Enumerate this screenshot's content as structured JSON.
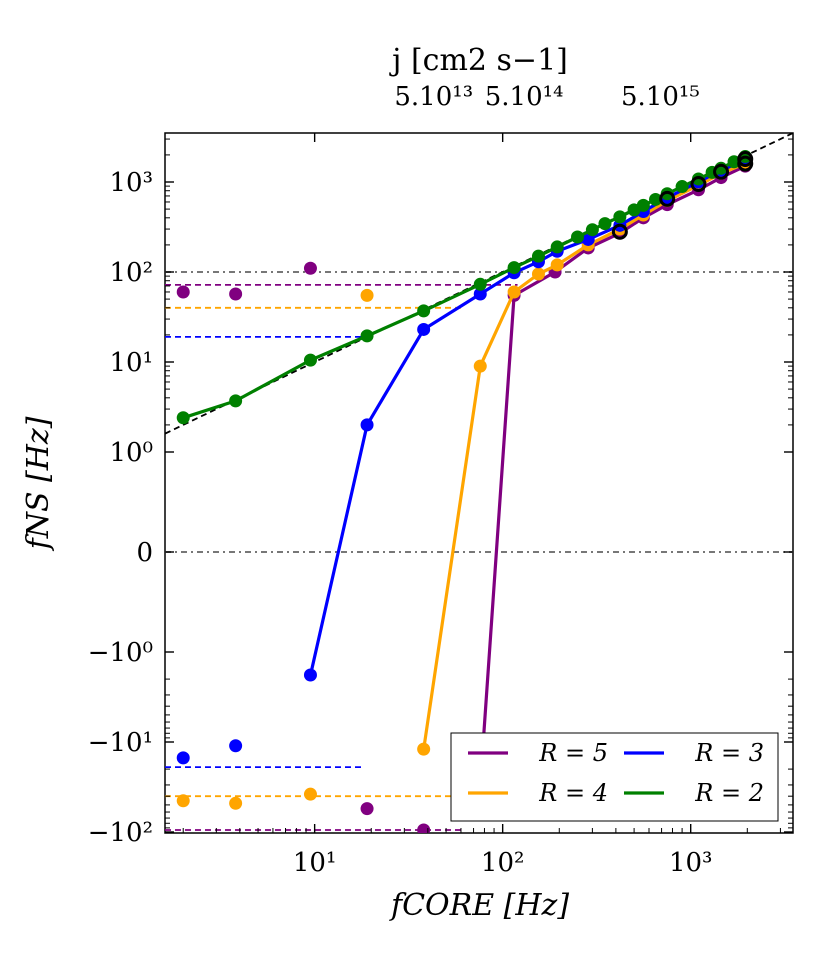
{
  "chart_data": {
    "type": "line",
    "x_scale": "log",
    "y_scale": "symlog",
    "xlim": [
      1.6,
      3500
    ],
    "ylim": [
      -110,
      3500
    ],
    "xlabel": "fCORE [Hz]",
    "ylabel": "fNS [Hz]",
    "top_axis_label": "j [cm2 s−1]",
    "top_ticks": [
      "5.10¹³",
      "5.10¹⁴",
      "5.10¹⁵"
    ],
    "x_ticks": [
      "10¹",
      "10²",
      "10³"
    ],
    "y_ticks": [
      "10³",
      "10²",
      "10¹",
      "10⁰",
      "0",
      "−10⁰",
      "−10¹",
      "−10²"
    ],
    "grid": false,
    "legend_position": "lower-right",
    "reference_lines": [
      {
        "type": "horizontal",
        "y": 100,
        "style": "dashdot"
      },
      {
        "type": "horizontal",
        "y": 0,
        "style": "dashdot"
      },
      {
        "type": "diagonal",
        "equation": "y = x",
        "style": "dashed"
      }
    ],
    "series": [
      {
        "name": "R = 5",
        "color": "#800080",
        "line": [
          [
            76,
            -30
          ],
          [
            115,
            55
          ],
          [
            190,
            100
          ],
          [
            285,
            185
          ],
          [
            420,
            270
          ],
          [
            560,
            400
          ],
          [
            750,
            560
          ],
          [
            1100,
            820
          ],
          [
            1450,
            1120
          ],
          [
            1950,
            1500
          ]
        ],
        "scatter": [
          [
            2,
            60
          ],
          [
            3.8,
            57
          ],
          [
            9.5,
            110
          ],
          [
            19,
            -55
          ],
          [
            38,
            -95
          ]
        ],
        "level_lines": [
          {
            "y": 72,
            "x": [
              1.6,
              120
            ]
          },
          {
            "y": -95,
            "x": [
              1.6,
              60
            ]
          }
        ]
      },
      {
        "name": "R = 4",
        "color": "#FFA500",
        "line": [
          [
            38,
            -12
          ],
          [
            76,
            9
          ],
          [
            115,
            60
          ],
          [
            155,
            95
          ],
          [
            195,
            120
          ],
          [
            285,
            200
          ],
          [
            420,
            300
          ],
          [
            560,
            430
          ],
          [
            750,
            620
          ],
          [
            1100,
            920
          ],
          [
            1450,
            1250
          ],
          [
            1950,
            1600
          ]
        ],
        "scatter": [
          [
            2,
            -45
          ],
          [
            3.8,
            -48
          ],
          [
            9.5,
            -38
          ],
          [
            19,
            55
          ]
        ],
        "level_lines": [
          {
            "y": 40,
            "x": [
              1.6,
              60
            ]
          },
          {
            "y": -40,
            "x": [
              1.6,
              60
            ]
          }
        ]
      },
      {
        "name": "R = 3",
        "color": "#0000FF",
        "line": [
          [
            9.5,
            -1.8
          ],
          [
            19,
            2
          ],
          [
            38,
            23
          ],
          [
            76,
            57
          ],
          [
            115,
            98
          ],
          [
            155,
            130
          ],
          [
            195,
            170
          ],
          [
            285,
            230
          ],
          [
            420,
            330
          ],
          [
            560,
            470
          ],
          [
            750,
            670
          ],
          [
            1100,
            1000
          ],
          [
            1450,
            1350
          ],
          [
            1950,
            1750
          ]
        ],
        "scatter": [
          [
            2,
            -15
          ],
          [
            3.8,
            -11
          ]
        ],
        "level_lines": [
          {
            "y": 19,
            "x": [
              1.6,
              18
            ]
          },
          {
            "y": -19,
            "x": [
              1.6,
              18
            ]
          }
        ]
      },
      {
        "name": "R = 2",
        "color": "#008000",
        "line": [
          [
            2,
            2.4
          ],
          [
            3.8,
            3.7
          ],
          [
            9.5,
            10.5
          ],
          [
            19,
            19.5
          ],
          [
            38,
            37
          ],
          [
            76,
            73
          ],
          [
            115,
            112
          ],
          [
            155,
            150
          ],
          [
            195,
            190
          ],
          [
            250,
            245
          ],
          [
            300,
            295
          ],
          [
            350,
            345
          ],
          [
            420,
            410
          ],
          [
            500,
            490
          ],
          [
            560,
            550
          ],
          [
            650,
            640
          ],
          [
            750,
            740
          ],
          [
            900,
            890
          ],
          [
            1100,
            1080
          ],
          [
            1300,
            1280
          ],
          [
            1450,
            1420
          ],
          [
            1700,
            1680
          ],
          [
            1950,
            1920
          ]
        ],
        "scatter": [],
        "level_lines": []
      }
    ],
    "black_open_circles": [
      [
        420,
        280
      ],
      [
        750,
        650
      ],
      [
        1100,
        950
      ],
      [
        1450,
        1300
      ],
      [
        1950,
        1600
      ],
      [
        1950,
        1800
      ]
    ]
  },
  "icons": {
    "legend_swatch": "line-swatch"
  }
}
